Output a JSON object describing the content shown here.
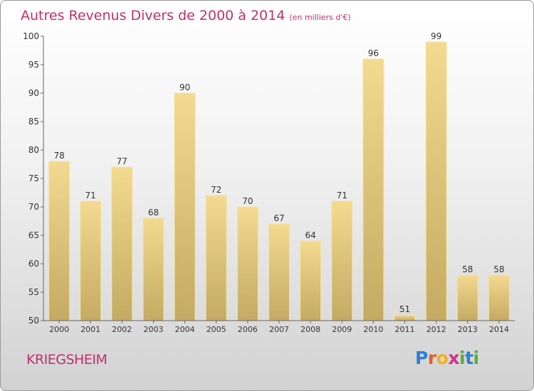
{
  "header": {
    "title": "Autres Revenus Divers de 2000 à 2014",
    "unit": "(en milliers d'€)"
  },
  "footer": {
    "commune": "KRIEGSHEIM",
    "logo": [
      "P",
      "r",
      "o",
      "x",
      "i",
      "t",
      "i"
    ]
  },
  "colors": {
    "title": "#c0306a",
    "bar_top": "#f3da90",
    "bar_bottom": "#c4aa62",
    "bar_edge": "#f6e3a6"
  },
  "chart_data": {
    "type": "bar",
    "title": "Autres Revenus Divers de 2000 à 2014",
    "subtitle": "(en milliers d'€)",
    "xlabel": "",
    "ylabel": "",
    "categories": [
      "2000",
      "2001",
      "2002",
      "2003",
      "2004",
      "2005",
      "2006",
      "2007",
      "2008",
      "2009",
      "2010",
      "2011",
      "2012",
      "2013",
      "2014"
    ],
    "values": [
      78,
      71,
      77,
      68,
      90,
      72,
      70,
      67,
      64,
      71,
      96,
      51,
      99,
      58,
      58
    ],
    "ylim": [
      50,
      100
    ],
    "yticks": [
      50,
      55,
      60,
      65,
      70,
      75,
      80,
      85,
      90,
      95,
      100
    ],
    "grid": false,
    "legend": "none"
  }
}
